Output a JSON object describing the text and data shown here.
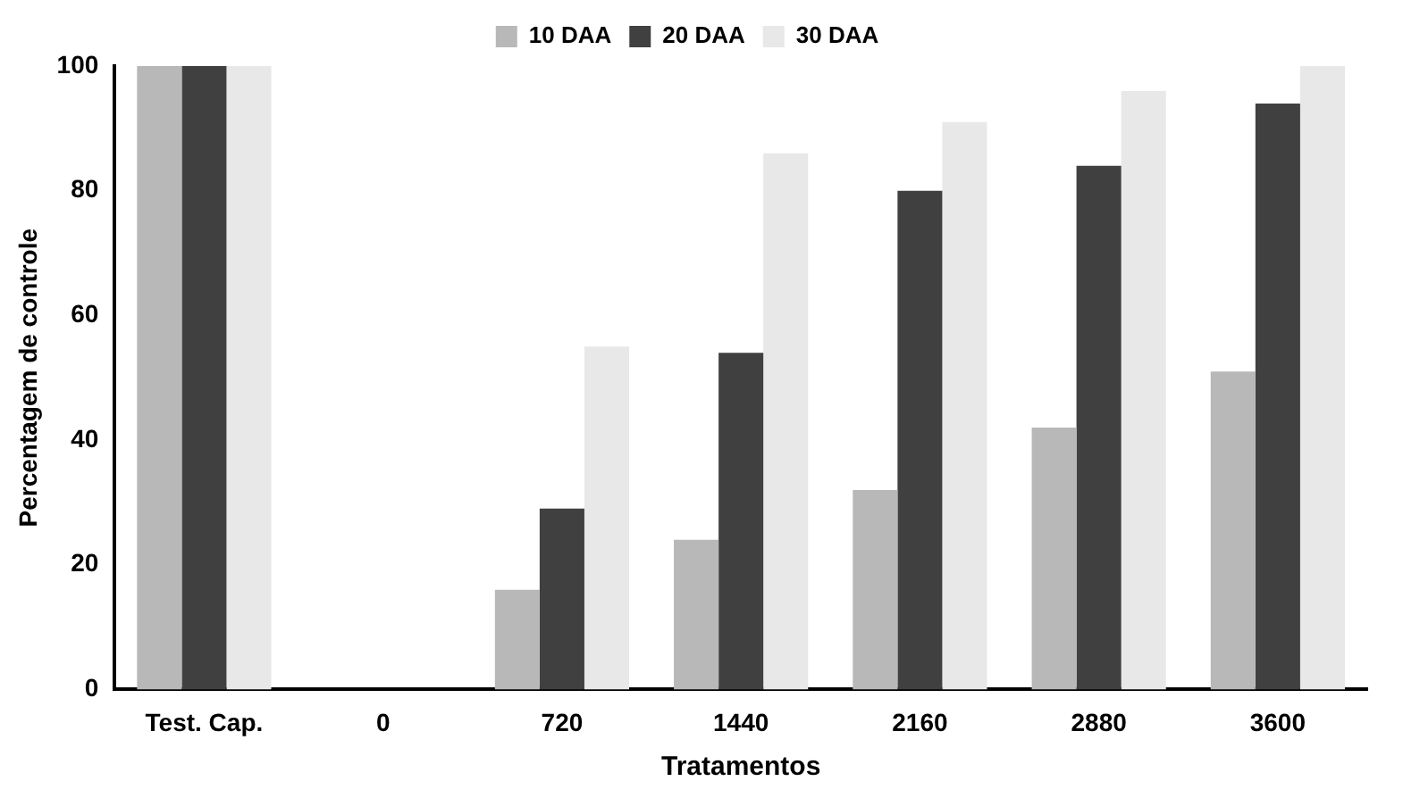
{
  "chart_data": {
    "type": "bar",
    "xlabel": "Tratamentos",
    "ylabel": "Percentagem de controle",
    "categories": [
      "Test. Cap.",
      "0",
      "720",
      "1440",
      "2160",
      "2880",
      "3600"
    ],
    "series": [
      {
        "name": "10 DAA",
        "color": "#b8b8b8",
        "values": [
          100,
          0,
          16,
          24,
          32,
          42,
          51
        ]
      },
      {
        "name": "20 DAA",
        "color": "#404040",
        "values": [
          100,
          0,
          29,
          54,
          80,
          84,
          94
        ]
      },
      {
        "name": "30 DAA",
        "color": "#e8e8e8",
        "values": [
          100,
          0,
          55,
          86,
          91,
          96,
          100
        ]
      }
    ],
    "ylim": [
      0,
      100
    ],
    "yticks": [
      0,
      20,
      40,
      60,
      80,
      100
    ],
    "grid": false,
    "legend": "top"
  }
}
